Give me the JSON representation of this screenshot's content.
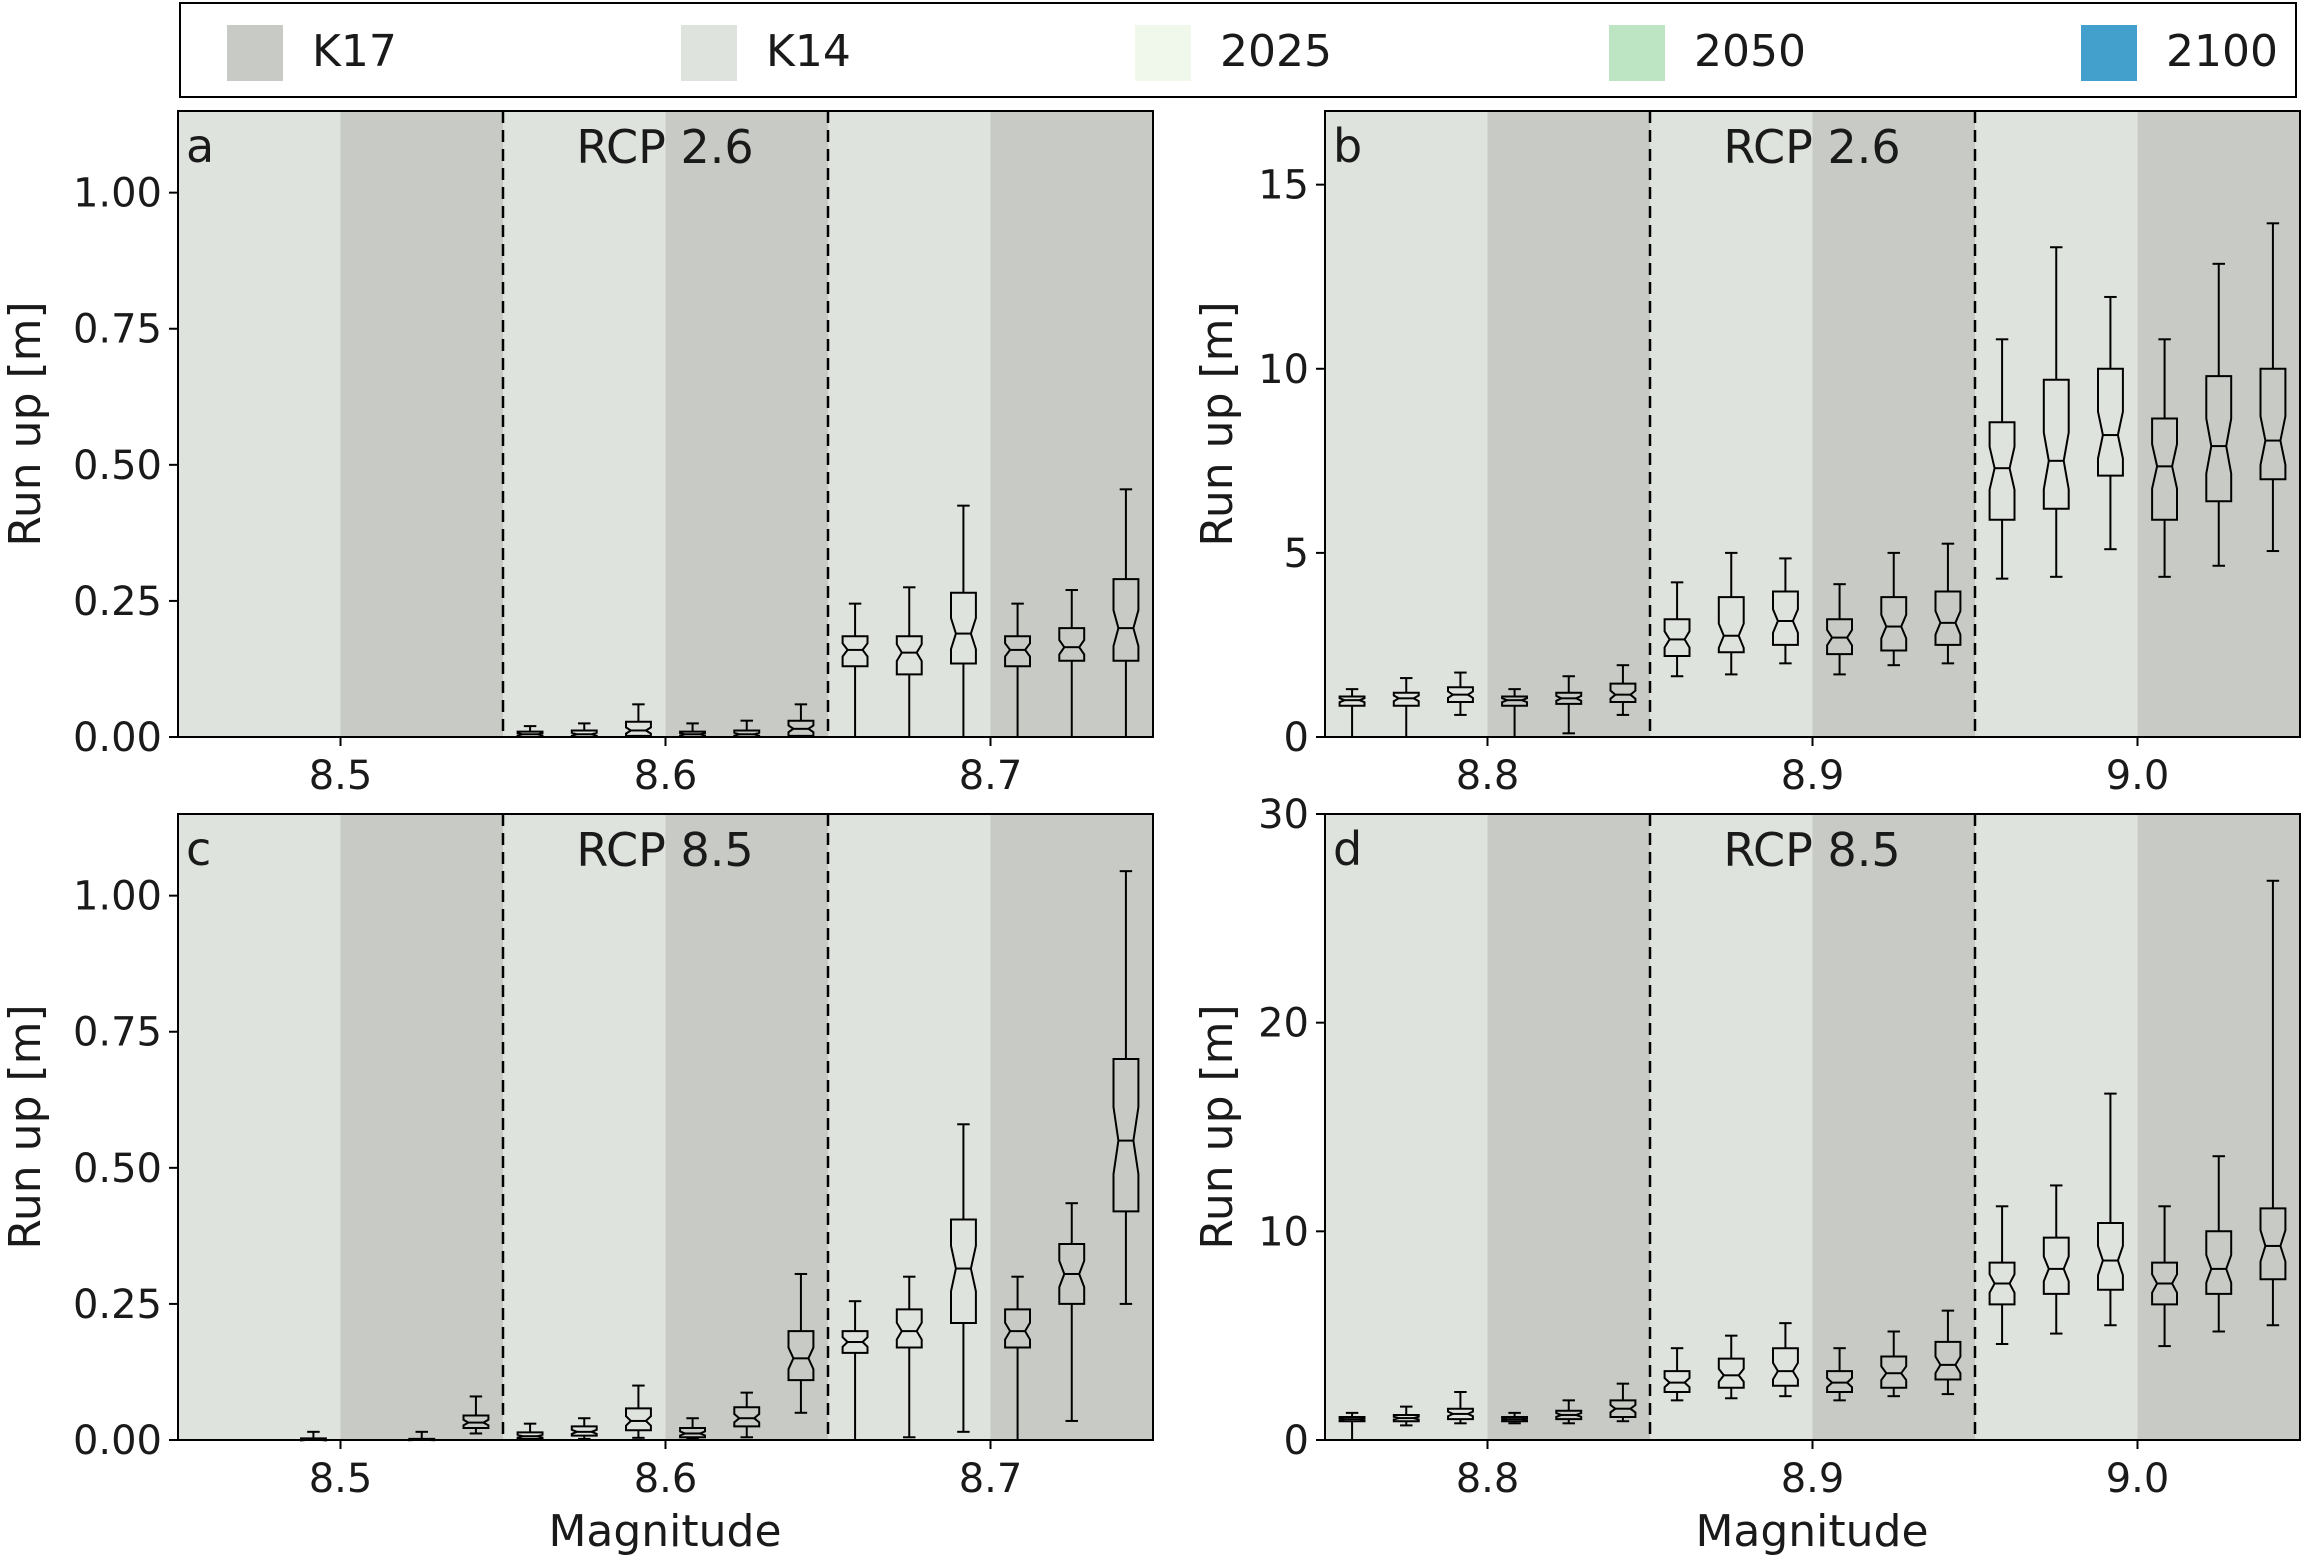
{
  "legend": [
    {
      "label": "K17",
      "color": "#c8cbc5"
    },
    {
      "label": "K14",
      "color": "#dfe3dd"
    },
    {
      "label": "2025",
      "color": "#eff8ea"
    },
    {
      "label": "2050",
      "color": "#bde5c3"
    },
    {
      "label": "2100",
      "color": "#439fcb"
    }
  ],
  "colors": {
    "k14": "#dfe3dd",
    "k17": "#c8cbc5",
    "y2025": "#fafdf7",
    "y2050": "#c8ebca",
    "y2100": "#439fcb"
  },
  "chart_data": [
    {
      "type": "box",
      "panel": "a",
      "scenario": "RCP 2.6",
      "title": "",
      "xlabel": "",
      "ylabel": "Run up [m]",
      "ylim": [
        0,
        1.15
      ],
      "yticks": [
        0,
        0.25,
        0.5,
        0.75,
        1.0
      ],
      "ytick_labels": [
        "0.00",
        "0.25",
        "0.50",
        "0.75",
        "1.00"
      ],
      "magnitudes": [
        "8.5",
        "8.6",
        "8.7"
      ],
      "boxes": [
        {
          "mag": "8.5",
          "model": "K14",
          "year": "2025",
          "stats": [
            0,
            0,
            0,
            0,
            0
          ]
        },
        {
          "mag": "8.5",
          "model": "K14",
          "year": "2050",
          "stats": [
            0,
            0,
            0,
            0,
            0
          ]
        },
        {
          "mag": "8.5",
          "model": "K14",
          "year": "2100",
          "stats": [
            0,
            0,
            0,
            0,
            0
          ]
        },
        {
          "mag": "8.5",
          "model": "K17",
          "year": "2025",
          "stats": [
            0,
            0,
            0,
            0,
            0
          ]
        },
        {
          "mag": "8.5",
          "model": "K17",
          "year": "2050",
          "stats": [
            0,
            0,
            0,
            0,
            0
          ]
        },
        {
          "mag": "8.5",
          "model": "K17",
          "year": "2100",
          "stats": [
            0,
            0,
            0,
            0,
            0
          ]
        },
        {
          "mag": "8.6",
          "model": "K14",
          "year": "2025",
          "stats": [
            0,
            0,
            0.005,
            0.01,
            0.02
          ]
        },
        {
          "mag": "8.6",
          "model": "K14",
          "year": "2050",
          "stats": [
            0,
            0,
            0.005,
            0.012,
            0.025
          ]
        },
        {
          "mag": "8.6",
          "model": "K14",
          "year": "2100",
          "stats": [
            0,
            0.002,
            0.012,
            0.028,
            0.06
          ]
        },
        {
          "mag": "8.6",
          "model": "K17",
          "year": "2025",
          "stats": [
            0,
            0,
            0.005,
            0.01,
            0.025
          ]
        },
        {
          "mag": "8.6",
          "model": "K17",
          "year": "2050",
          "stats": [
            0,
            0,
            0.005,
            0.012,
            0.03
          ]
        },
        {
          "mag": "8.6",
          "model": "K17",
          "year": "2100",
          "stats": [
            0,
            0.002,
            0.015,
            0.03,
            0.06
          ]
        },
        {
          "mag": "8.7",
          "model": "K14",
          "year": "2025",
          "stats": [
            0,
            0.13,
            0.16,
            0.185,
            0.245
          ]
        },
        {
          "mag": "8.7",
          "model": "K14",
          "year": "2050",
          "stats": [
            0,
            0.115,
            0.155,
            0.185,
            0.275
          ]
        },
        {
          "mag": "8.7",
          "model": "K14",
          "year": "2100",
          "stats": [
            0,
            0.135,
            0.19,
            0.265,
            0.425
          ]
        },
        {
          "mag": "8.7",
          "model": "K17",
          "year": "2025",
          "stats": [
            0,
            0.13,
            0.16,
            0.185,
            0.245
          ]
        },
        {
          "mag": "8.7",
          "model": "K17",
          "year": "2050",
          "stats": [
            0,
            0.14,
            0.165,
            0.2,
            0.27
          ]
        },
        {
          "mag": "8.7",
          "model": "K17",
          "year": "2100",
          "stats": [
            0,
            0.14,
            0.2,
            0.29,
            0.455
          ]
        }
      ]
    },
    {
      "type": "box",
      "panel": "b",
      "scenario": "RCP 2.6",
      "title": "",
      "xlabel": "",
      "ylabel": "Run up [m]",
      "ylim": [
        0,
        17
      ],
      "yticks": [
        0,
        5,
        10,
        15
      ],
      "ytick_labels": [
        "0",
        "5",
        "10",
        "15"
      ],
      "magnitudes": [
        "8.8",
        "8.9",
        "9.0"
      ],
      "boxes": [
        {
          "mag": "8.8",
          "model": "K14",
          "year": "2025",
          "stats": [
            0,
            0.85,
            1.0,
            1.1,
            1.3
          ]
        },
        {
          "mag": "8.8",
          "model": "K14",
          "year": "2050",
          "stats": [
            0,
            0.85,
            1.05,
            1.2,
            1.6
          ]
        },
        {
          "mag": "8.8",
          "model": "K14",
          "year": "2100",
          "stats": [
            0.6,
            0.95,
            1.15,
            1.35,
            1.75
          ]
        },
        {
          "mag": "8.8",
          "model": "K17",
          "year": "2025",
          "stats": [
            0,
            0.85,
            1.0,
            1.1,
            1.3
          ]
        },
        {
          "mag": "8.8",
          "model": "K17",
          "year": "2050",
          "stats": [
            0.1,
            0.9,
            1.05,
            1.2,
            1.65
          ]
        },
        {
          "mag": "8.8",
          "model": "K17",
          "year": "2100",
          "stats": [
            0.6,
            0.95,
            1.15,
            1.45,
            1.95
          ]
        },
        {
          "mag": "8.9",
          "model": "K14",
          "year": "2025",
          "stats": [
            1.65,
            2.2,
            2.65,
            3.2,
            4.2
          ]
        },
        {
          "mag": "8.9",
          "model": "K14",
          "year": "2050",
          "stats": [
            1.7,
            2.3,
            2.75,
            3.8,
            5.0
          ]
        },
        {
          "mag": "8.9",
          "model": "K14",
          "year": "2100",
          "stats": [
            2.0,
            2.5,
            3.15,
            3.95,
            4.85
          ]
        },
        {
          "mag": "8.9",
          "model": "K17",
          "year": "2025",
          "stats": [
            1.7,
            2.25,
            2.7,
            3.2,
            4.15
          ]
        },
        {
          "mag": "8.9",
          "model": "K17",
          "year": "2050",
          "stats": [
            1.95,
            2.35,
            3.0,
            3.8,
            5.0
          ]
        },
        {
          "mag": "8.9",
          "model": "K17",
          "year": "2100",
          "stats": [
            2.0,
            2.5,
            3.1,
            3.95,
            5.25
          ]
        },
        {
          "mag": "9.0",
          "model": "K14",
          "year": "2025",
          "stats": [
            4.3,
            5.9,
            7.3,
            8.55,
            10.8
          ]
        },
        {
          "mag": "9.0",
          "model": "K14",
          "year": "2050",
          "stats": [
            4.35,
            6.2,
            7.5,
            9.7,
            13.3
          ]
        },
        {
          "mag": "9.0",
          "model": "K14",
          "year": "2100",
          "stats": [
            5.1,
            7.1,
            8.2,
            10.0,
            11.95
          ]
        },
        {
          "mag": "9.0",
          "model": "K17",
          "year": "2025",
          "stats": [
            4.35,
            5.9,
            7.35,
            8.65,
            10.8
          ]
        },
        {
          "mag": "9.0",
          "model": "K17",
          "year": "2050",
          "stats": [
            4.65,
            6.4,
            7.9,
            9.8,
            12.85
          ]
        },
        {
          "mag": "9.0",
          "model": "K17",
          "year": "2100",
          "stats": [
            5.05,
            7.0,
            8.05,
            10.0,
            13.95
          ]
        }
      ]
    },
    {
      "type": "box",
      "panel": "c",
      "scenario": "RCP 8.5",
      "title": "",
      "xlabel": "Magnitude",
      "ylabel": "Run up [m]",
      "ylim": [
        0,
        1.15
      ],
      "yticks": [
        0,
        0.25,
        0.5,
        0.75,
        1.0
      ],
      "ytick_labels": [
        "0.00",
        "0.25",
        "0.50",
        "0.75",
        "1.00"
      ],
      "magnitudes": [
        "8.5",
        "8.6",
        "8.7"
      ],
      "boxes": [
        {
          "mag": "8.5",
          "model": "K14",
          "year": "2025",
          "stats": [
            0,
            0,
            0,
            0,
            0
          ]
        },
        {
          "mag": "8.5",
          "model": "K14",
          "year": "2050",
          "stats": [
            0,
            0,
            0,
            0,
            0
          ]
        },
        {
          "mag": "8.5",
          "model": "K14",
          "year": "2100",
          "stats": [
            0,
            0,
            0,
            0.003,
            0.015
          ]
        },
        {
          "mag": "8.5",
          "model": "K17",
          "year": "2025",
          "stats": [
            0,
            0,
            0,
            0,
            0
          ]
        },
        {
          "mag": "8.5",
          "model": "K17",
          "year": "2050",
          "stats": [
            0,
            0,
            0,
            0.002,
            0.015
          ]
        },
        {
          "mag": "8.5",
          "model": "K17",
          "year": "2100",
          "stats": [
            0.012,
            0.022,
            0.032,
            0.045,
            0.08
          ]
        },
        {
          "mag": "8.6",
          "model": "K14",
          "year": "2025",
          "stats": [
            0,
            0.002,
            0.007,
            0.014,
            0.03
          ]
        },
        {
          "mag": "8.6",
          "model": "K14",
          "year": "2050",
          "stats": [
            0.002,
            0.008,
            0.015,
            0.025,
            0.04
          ]
        },
        {
          "mag": "8.6",
          "model": "K14",
          "year": "2100",
          "stats": [
            0.004,
            0.018,
            0.035,
            0.058,
            0.1
          ]
        },
        {
          "mag": "8.6",
          "model": "K17",
          "year": "2025",
          "stats": [
            0.002,
            0.005,
            0.012,
            0.022,
            0.04
          ]
        },
        {
          "mag": "8.6",
          "model": "K17",
          "year": "2050",
          "stats": [
            0.005,
            0.025,
            0.04,
            0.06,
            0.087
          ]
        },
        {
          "mag": "8.6",
          "model": "K17",
          "year": "2100",
          "stats": [
            0.05,
            0.11,
            0.15,
            0.2,
            0.305
          ]
        },
        {
          "mag": "8.7",
          "model": "K14",
          "year": "2025",
          "stats": [
            0,
            0.16,
            0.18,
            0.2,
            0.255
          ]
        },
        {
          "mag": "8.7",
          "model": "K14",
          "year": "2050",
          "stats": [
            0.005,
            0.17,
            0.2,
            0.24,
            0.3
          ]
        },
        {
          "mag": "8.7",
          "model": "K14",
          "year": "2100",
          "stats": [
            0.015,
            0.215,
            0.315,
            0.405,
            0.58
          ]
        },
        {
          "mag": "8.7",
          "model": "K17",
          "year": "2025",
          "stats": [
            0,
            0.17,
            0.2,
            0.24,
            0.3
          ]
        },
        {
          "mag": "8.7",
          "model": "K17",
          "year": "2050",
          "stats": [
            0.035,
            0.25,
            0.305,
            0.36,
            0.435
          ]
        },
        {
          "mag": "8.7",
          "model": "K17",
          "year": "2100",
          "stats": [
            0.25,
            0.42,
            0.55,
            0.7,
            1.045
          ]
        }
      ]
    },
    {
      "type": "box",
      "panel": "d",
      "scenario": "RCP 8.5",
      "title": "",
      "xlabel": "Magnitude",
      "ylabel": "Run up [m]",
      "ylim": [
        0,
        30
      ],
      "yticks": [
        0,
        10,
        20,
        30
      ],
      "ytick_labels": [
        "0",
        "10",
        "20",
        "30"
      ],
      "magnitudes": [
        "8.8",
        "8.9",
        "9.0"
      ],
      "boxes": [
        {
          "mag": "8.8",
          "model": "K14",
          "year": "2025",
          "stats": [
            0,
            0.9,
            1.0,
            1.1,
            1.3
          ]
        },
        {
          "mag": "8.8",
          "model": "K14",
          "year": "2050",
          "stats": [
            0.7,
            0.9,
            1.05,
            1.2,
            1.6
          ]
        },
        {
          "mag": "8.8",
          "model": "K14",
          "year": "2100",
          "stats": [
            0.8,
            1.0,
            1.25,
            1.5,
            2.3
          ]
        },
        {
          "mag": "8.8",
          "model": "K17",
          "year": "2025",
          "stats": [
            0.8,
            0.9,
            1.0,
            1.1,
            1.3
          ]
        },
        {
          "mag": "8.8",
          "model": "K17",
          "year": "2050",
          "stats": [
            0.8,
            1.0,
            1.2,
            1.4,
            1.9
          ]
        },
        {
          "mag": "8.8",
          "model": "K17",
          "year": "2100",
          "stats": [
            0.9,
            1.1,
            1.5,
            1.9,
            2.7
          ]
        },
        {
          "mag": "8.9",
          "model": "K14",
          "year": "2025",
          "stats": [
            1.9,
            2.3,
            2.75,
            3.3,
            4.4
          ]
        },
        {
          "mag": "8.9",
          "model": "K14",
          "year": "2050",
          "stats": [
            2.0,
            2.5,
            3.1,
            3.9,
            5.0
          ]
        },
        {
          "mag": "8.9",
          "model": "K14",
          "year": "2100",
          "stats": [
            2.1,
            2.6,
            3.3,
            4.4,
            5.6
          ]
        },
        {
          "mag": "8.9",
          "model": "K17",
          "year": "2025",
          "stats": [
            1.9,
            2.3,
            2.75,
            3.3,
            4.4
          ]
        },
        {
          "mag": "8.9",
          "model": "K17",
          "year": "2050",
          "stats": [
            2.1,
            2.5,
            3.2,
            4.0,
            5.2
          ]
        },
        {
          "mag": "8.9",
          "model": "K17",
          "year": "2100",
          "stats": [
            2.2,
            2.9,
            3.6,
            4.7,
            6.2
          ]
        },
        {
          "mag": "9.0",
          "model": "K14",
          "year": "2025",
          "stats": [
            4.6,
            6.5,
            7.5,
            8.5,
            11.2
          ]
        },
        {
          "mag": "9.0",
          "model": "K14",
          "year": "2050",
          "stats": [
            5.1,
            7.0,
            8.2,
            9.7,
            12.2
          ]
        },
        {
          "mag": "9.0",
          "model": "K14",
          "year": "2100",
          "stats": [
            5.5,
            7.2,
            8.6,
            10.4,
            16.6
          ]
        },
        {
          "mag": "9.0",
          "model": "K17",
          "year": "2025",
          "stats": [
            4.5,
            6.5,
            7.5,
            8.5,
            11.2
          ]
        },
        {
          "mag": "9.0",
          "model": "K17",
          "year": "2050",
          "stats": [
            5.2,
            7.0,
            8.2,
            10.0,
            13.6
          ]
        },
        {
          "mag": "9.0",
          "model": "K17",
          "year": "2100",
          "stats": [
            5.5,
            7.7,
            9.3,
            11.1,
            26.8
          ]
        }
      ]
    }
  ]
}
